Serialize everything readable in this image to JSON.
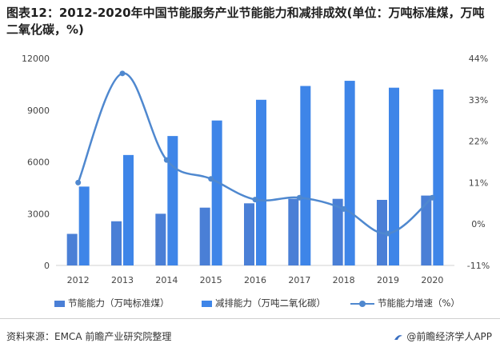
{
  "title": "图表12：2012-2020年中国节能服务产业节能能力和减排成效(单位：万吨标准煤，万吨二氧化碳，%)",
  "source": "资料来源：EMCA 前瞻产业研究院整理",
  "brand": "@前瞻经济学人APP",
  "colors": {
    "bar1": "#4a7fd6",
    "bar2": "#3e85e8",
    "line": "#4f88cf",
    "axis": "#d0d0d0"
  },
  "chart_data": {
    "type": "bar",
    "categories": [
      "2012",
      "2013",
      "2014",
      "2015",
      "2016",
      "2017",
      "2018",
      "2019",
      "2020"
    ],
    "left_axis": {
      "min": 0,
      "max": 12000,
      "ticks": [
        "0",
        "3000",
        "6000",
        "9000",
        "12000"
      ],
      "tick_values": [
        0,
        3000,
        6000,
        9000,
        12000
      ]
    },
    "right_axis": {
      "min": -11,
      "max": 44,
      "ticks": [
        "-11%",
        "0%",
        "11%",
        "22%",
        "33%",
        "44%"
      ],
      "tick_values": [
        -11,
        0,
        11,
        22,
        33,
        44
      ]
    },
    "series": [
      {
        "name": "节能能力（万吨标准煤）",
        "type": "bar",
        "axis": "left",
        "values": [
          1830,
          2560,
          2996,
          3350,
          3600,
          3860,
          3860,
          3800,
          4050
        ]
      },
      {
        "name": "减排能力（万吨二氧化碳）",
        "type": "bar",
        "axis": "left",
        "values": [
          4570,
          6400,
          7500,
          8400,
          9600,
          10400,
          10700,
          10300,
          10200
        ]
      },
      {
        "name": "节能能力增速（%）",
        "type": "line",
        "axis": "right",
        "values": [
          11,
          40,
          17,
          12,
          6.5,
          7,
          4,
          -2.5,
          7
        ]
      }
    ],
    "legend_position": "bottom",
    "grid": false
  }
}
